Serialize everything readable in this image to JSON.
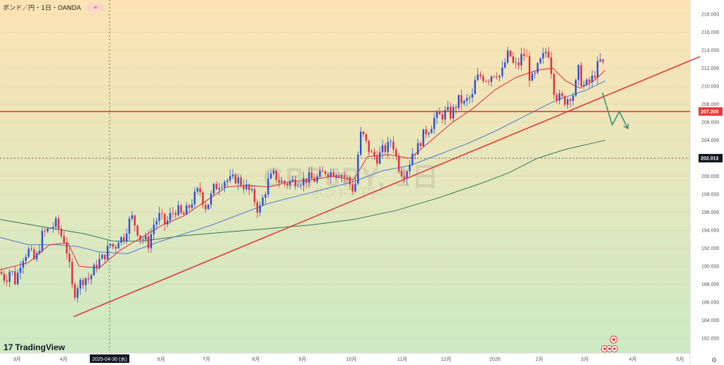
{
  "chart_title": "ポンド／円・1日・OANDA",
  "badge": "≡",
  "watermark": {
    "symbol": "GBPJPY, 1日",
    "name": "ポンド／円"
  },
  "brand": {
    "logo": "17",
    "name": "TradingView"
  },
  "settings_icon": "gear-icon",
  "colors": {
    "up_candle": "#2a4fd6",
    "down_candle": "#e5293b",
    "ma_short": "#e5293b",
    "ma_mid": "#4a7bd8",
    "ma_long": "#2f7a5a",
    "trendline": "#e5393b",
    "resistance": "#e5393b",
    "forecast_arrow": "#2b8a6e",
    "bg_top": "#fde3b4",
    "bg_bottom": "#cdeac4"
  },
  "chart_data": {
    "type": "candlestick",
    "title": "ポンド／円・1日・OANDA",
    "ylim": [
      181.0,
      218.8
    ],
    "y_ticks": [
      "218.000",
      "216.000",
      "214.000",
      "212.000",
      "210.000",
      "208.000",
      "206.000",
      "204.000",
      "202.000",
      "200.000",
      "198.000",
      "196.000",
      "194.000",
      "192.000",
      "190.000",
      "188.000",
      "186.000",
      "184.000",
      "182.000"
    ],
    "x_ticks": [
      "3月",
      "4月",
      "2025-04-30 (水)",
      "6月",
      "7月",
      "8月",
      "9月",
      "10月",
      "11月",
      "12月",
      "2026",
      "2月",
      "3月",
      "4月",
      "5月"
    ],
    "crosshair": {
      "date": "2025-04-30 (水)",
      "price": "202.013",
      "price_value": 202.013
    },
    "horizontal_line": {
      "label": "207.200",
      "value": 207.2
    },
    "price_path": [
      [
        0,
        189.4
      ],
      [
        8,
        188.5
      ],
      [
        15,
        189.8
      ],
      [
        22,
        188.2
      ],
      [
        30,
        190.8
      ],
      [
        40,
        191.8
      ],
      [
        50,
        190.5
      ],
      [
        60,
        193.5
      ],
      [
        70,
        194.2
      ],
      [
        80,
        194.8
      ],
      [
        86,
        193.5
      ],
      [
        92,
        192.8
      ],
      [
        96,
        191.0
      ],
      [
        100,
        189.0
      ],
      [
        104,
        186.5
      ],
      [
        108,
        187.8
      ],
      [
        114,
        188.2
      ],
      [
        120,
        188.8
      ],
      [
        126,
        188.6
      ],
      [
        132,
        189.5
      ],
      [
        138,
        190.5
      ],
      [
        144,
        190.8
      ],
      [
        150,
        191.5
      ],
      [
        156,
        192.5
      ],
      [
        162,
        192.0
      ],
      [
        168,
        193.2
      ],
      [
        174,
        193.0
      ],
      [
        180,
        194.5
      ],
      [
        186,
        195.5
      ],
      [
        192,
        194.5
      ],
      [
        198,
        193.2
      ],
      [
        204,
        193.0
      ],
      [
        210,
        192.5
      ],
      [
        218,
        194.8
      ],
      [
        226,
        195.6
      ],
      [
        234,
        194.6
      ],
      [
        242,
        195.8
      ],
      [
        250,
        196.4
      ],
      [
        258,
        195.5
      ],
      [
        266,
        196.4
      ],
      [
        274,
        197.6
      ],
      [
        282,
        198.6
      ],
      [
        290,
        196.6
      ],
      [
        296,
        197.2
      ],
      [
        302,
        198.6
      ],
      [
        310,
        199.2
      ],
      [
        318,
        199.6
      ],
      [
        326,
        199.5
      ],
      [
        334,
        199.8
      ],
      [
        342,
        199.2
      ],
      [
        350,
        198.6
      ],
      [
        358,
        197.8
      ],
      [
        366,
        196.0
      ],
      [
        372,
        197.6
      ],
      [
        380,
        199.6
      ],
      [
        388,
        200.2
      ],
      [
        396,
        199.4
      ],
      [
        404,
        199.2
      ],
      [
        412,
        199.4
      ],
      [
        420,
        199.6
      ],
      [
        428,
        199.5
      ],
      [
        436,
        199.8
      ],
      [
        444,
        199.6
      ],
      [
        452,
        200.0
      ],
      [
        460,
        200.6
      ],
      [
        468,
        200.4
      ],
      [
        476,
        200.6
      ],
      [
        484,
        200.2
      ],
      [
        492,
        199.6
      ],
      [
        498,
        198.6
      ],
      [
        502,
        198.8
      ],
      [
        506,
        202.2
      ],
      [
        510,
        204.6
      ],
      [
        514,
        204.4
      ],
      [
        520,
        203.2
      ],
      [
        526,
        202.4
      ],
      [
        534,
        202.0
      ],
      [
        540,
        202.8
      ],
      [
        548,
        203.2
      ],
      [
        554,
        204.2
      ],
      [
        560,
        202.2
      ],
      [
        566,
        200.6
      ],
      [
        572,
        200.4
      ],
      [
        578,
        201.2
      ],
      [
        584,
        202.8
      ],
      [
        590,
        203.0
      ],
      [
        596,
        204.2
      ],
      [
        602,
        205.0
      ],
      [
        608,
        205.4
      ],
      [
        614,
        206.4
      ],
      [
        620,
        206.6
      ],
      [
        626,
        206.8
      ],
      [
        632,
        207.2
      ],
      [
        638,
        206.8
      ],
      [
        644,
        207.8
      ],
      [
        650,
        208.6
      ],
      [
        656,
        208.0
      ],
      [
        662,
        208.6
      ],
      [
        668,
        208.8
      ],
      [
        672,
        210.5
      ],
      [
        678,
        211.2
      ],
      [
        684,
        211.0
      ],
      [
        690,
        210.8
      ],
      [
        696,
        211.4
      ],
      [
        702,
        211.6
      ],
      [
        708,
        211.0
      ],
      [
        714,
        212.6
      ],
      [
        720,
        213.8
      ],
      [
        726,
        212.4
      ],
      [
        732,
        212.2
      ],
      [
        738,
        213.4
      ],
      [
        744,
        213.6
      ],
      [
        750,
        210.6
      ],
      [
        756,
        211.0
      ],
      [
        762,
        212.4
      ],
      [
        768,
        213.2
      ],
      [
        774,
        214.2
      ],
      [
        778,
        213.2
      ],
      [
        782,
        210.0
      ],
      [
        788,
        208.8
      ],
      [
        794,
        208.6
      ],
      [
        800,
        208.4
      ],
      [
        806,
        209.0
      ],
      [
        812,
        209.2
      ],
      [
        818,
        211.8
      ],
      [
        824,
        210.0
      ],
      [
        830,
        210.2
      ],
      [
        836,
        210.6
      ],
      [
        842,
        211.6
      ],
      [
        848,
        212.8
      ],
      [
        852,
        212.6
      ],
      [
        856,
        211.6
      ]
    ],
    "ma_short_values": [
      [
        0,
        189.6
      ],
      [
        40,
        190.4
      ],
      [
        70,
        192.4
      ],
      [
        96,
        192.6
      ],
      [
        112,
        190.0
      ],
      [
        140,
        189.8
      ],
      [
        170,
        191.8
      ],
      [
        200,
        193.2
      ],
      [
        230,
        194.6
      ],
      [
        260,
        195.6
      ],
      [
        290,
        197.2
      ],
      [
        320,
        198.8
      ],
      [
        350,
        199.0
      ],
      [
        380,
        198.8
      ],
      [
        410,
        199.4
      ],
      [
        440,
        199.6
      ],
      [
        470,
        200.0
      ],
      [
        500,
        199.6
      ],
      [
        520,
        202.2
      ],
      [
        550,
        202.4
      ],
      [
        580,
        202.0
      ],
      [
        610,
        204.0
      ],
      [
        640,
        206.0
      ],
      [
        670,
        207.6
      ],
      [
        700,
        209.6
      ],
      [
        730,
        211.0
      ],
      [
        760,
        211.8
      ],
      [
        782,
        212.0
      ],
      [
        800,
        210.6
      ],
      [
        820,
        209.8
      ],
      [
        840,
        210.6
      ],
      [
        856,
        211.8
      ]
    ],
    "ma_mid_values": [
      [
        0,
        193.2
      ],
      [
        40,
        192.4
      ],
      [
        80,
        192.4
      ],
      [
        110,
        192.2
      ],
      [
        140,
        191.6
      ],
      [
        180,
        191.4
      ],
      [
        220,
        192.6
      ],
      [
        260,
        193.6
      ],
      [
        300,
        194.6
      ],
      [
        340,
        195.8
      ],
      [
        380,
        197.0
      ],
      [
        420,
        197.8
      ],
      [
        460,
        198.6
      ],
      [
        500,
        199.4
      ],
      [
        540,
        200.6
      ],
      [
        580,
        201.2
      ],
      [
        620,
        202.4
      ],
      [
        660,
        203.6
      ],
      [
        700,
        205.0
      ],
      [
        740,
        206.6
      ],
      [
        780,
        208.2
      ],
      [
        800,
        208.8
      ],
      [
        830,
        209.6
      ],
      [
        856,
        210.6
      ]
    ],
    "ma_long_values": [
      [
        0,
        195.2
      ],
      [
        60,
        194.4
      ],
      [
        120,
        193.6
      ],
      [
        160,
        192.8
      ],
      [
        200,
        192.8
      ],
      [
        260,
        193.4
      ],
      [
        320,
        193.8
      ],
      [
        380,
        194.2
      ],
      [
        440,
        194.6
      ],
      [
        500,
        195.2
      ],
      [
        560,
        196.2
      ],
      [
        620,
        197.6
      ],
      [
        680,
        199.2
      ],
      [
        720,
        200.4
      ],
      [
        760,
        202.0
      ],
      [
        800,
        203.0
      ],
      [
        856,
        204.0
      ]
    ],
    "trendline": {
      "start": [
        104,
        184.4
      ],
      "end": [
        990,
        213.3
      ]
    },
    "forecast_path": [
      [
        852,
        209.3
      ],
      [
        866,
        205.7
      ],
      [
        876,
        207.2
      ],
      [
        888,
        205.3
      ]
    ]
  }
}
